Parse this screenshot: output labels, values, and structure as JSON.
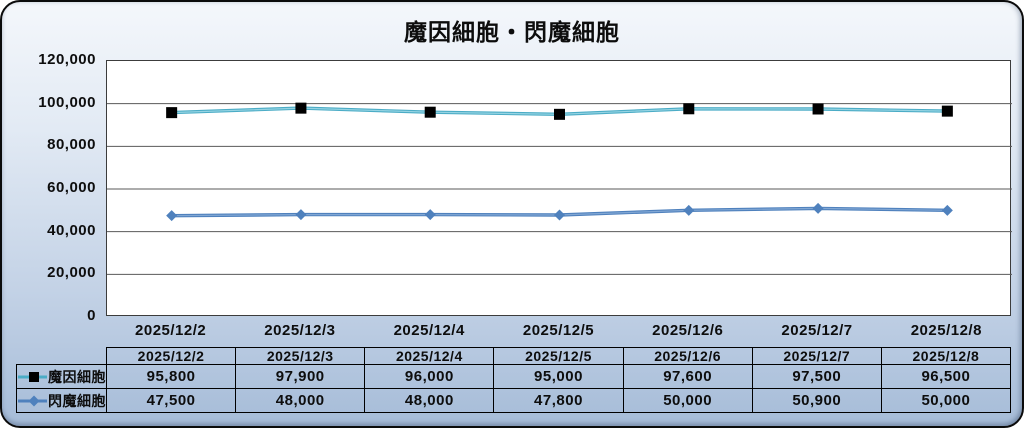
{
  "chart_data": {
    "type": "line",
    "title": "魔因細胞・閃魔細胞",
    "categories": [
      "2025/12/2",
      "2025/12/3",
      "2025/12/4",
      "2025/12/5",
      "2025/12/6",
      "2025/12/7",
      "2025/12/8"
    ],
    "series": [
      {
        "name": "魔因細胞",
        "values": [
          95800,
          97900,
          96000,
          95000,
          97600,
          97500,
          96500
        ],
        "values_formatted": [
          "95,800",
          "97,900",
          "96,000",
          "95,000",
          "97,600",
          "97,500",
          "96,500"
        ],
        "line_color": "#4BACC6",
        "line_highlight": "#9fd8e6",
        "marker": "square",
        "marker_color": "#000000"
      },
      {
        "name": "閃魔細胞",
        "values": [
          47500,
          48000,
          48000,
          47800,
          50000,
          50900,
          50000
        ],
        "values_formatted": [
          "47,500",
          "48,000",
          "48,000",
          "47,800",
          "50,000",
          "50,900",
          "50,000"
        ],
        "line_color": "#4F81BD",
        "line_highlight": "#86abd6",
        "marker": "diamond",
        "marker_color": "#4F81BD"
      }
    ],
    "ylim": [
      0,
      120000
    ],
    "ytick_step": 20000,
    "ytick_labels": [
      "0",
      "20,000",
      "40,000",
      "60,000",
      "80,000",
      "100,000",
      "120,000"
    ],
    "grid": true,
    "legend_position": "table-left",
    "xlabel": "",
    "ylabel": ""
  },
  "colors": {
    "gridline": "#595959",
    "plot_border": "#3c3c3c",
    "plot_background": "#ffffff",
    "table_border": "#000000",
    "frame_border": "#0b0b0b",
    "background_top": "#f4f7fb",
    "background_bottom": "#a6bcd8",
    "text": "#0d0d0d"
  }
}
